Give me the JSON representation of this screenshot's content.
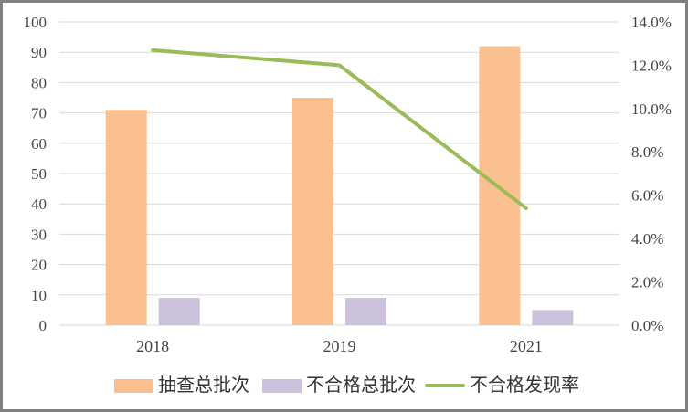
{
  "frame": {
    "background": "#FFFFFF",
    "border_color": "#808080"
  },
  "chart_data": {
    "type": "bar",
    "subtype": "combo-bar-line",
    "title": "",
    "xlabel": "",
    "ylabel": "",
    "categories": [
      "2018",
      "2019",
      "2021"
    ],
    "series": [
      {
        "key": "sampled-batches",
        "name": "抽查总批次",
        "type": "bar",
        "axis": "left",
        "color": "#FAC090",
        "values": [
          71,
          75,
          92
        ]
      },
      {
        "key": "failed-batches",
        "name": "不合格总批次",
        "type": "bar",
        "axis": "left",
        "color": "#CCC1DA",
        "values": [
          9,
          9,
          5
        ]
      },
      {
        "key": "failure-rate",
        "name": "不合格发现率",
        "type": "line",
        "axis": "right",
        "color": "#9BBB59",
        "values": [
          12.7,
          12.0,
          5.4
        ]
      }
    ],
    "left_axis": {
      "min": 0,
      "max": 100,
      "step": 10,
      "tick_labels": [
        "0",
        "10",
        "20",
        "30",
        "40",
        "50",
        "60",
        "70",
        "80",
        "90",
        "100"
      ]
    },
    "right_axis": {
      "min": 0,
      "max": 14,
      "step": 2,
      "tick_labels": [
        "0.0%",
        "2.0%",
        "4.0%",
        "6.0%",
        "8.0%",
        "10.0%",
        "12.0%",
        "14.0%"
      ]
    },
    "grid": true,
    "legend_position": "bottom",
    "colors": {
      "grid": "#D9D9D9",
      "tick_text": "#444444"
    }
  }
}
